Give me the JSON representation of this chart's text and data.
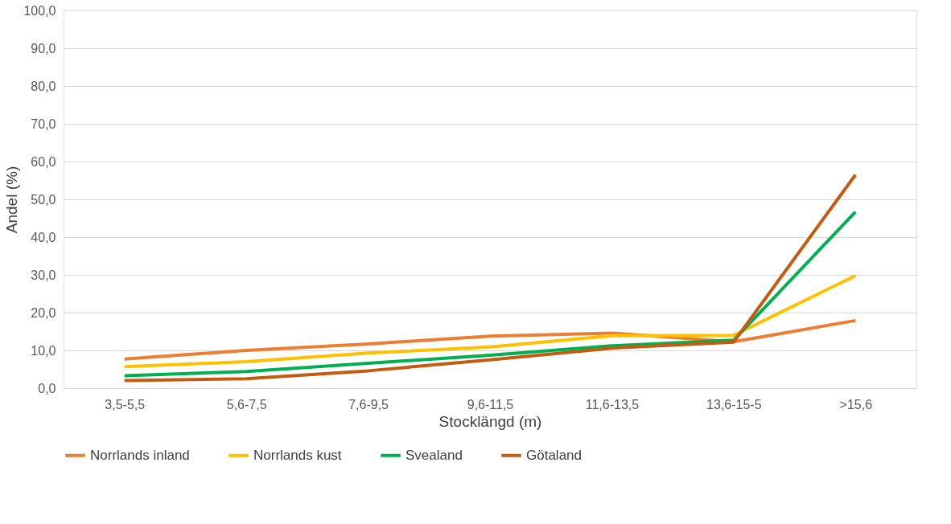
{
  "chart_data": {
    "type": "line",
    "xlabel": "Stocklängd (m)",
    "ylabel": "Andel (%)",
    "categories": [
      "3,5-5,5",
      "5,6-7,5",
      "7,6-9,5",
      "9,6-11,5",
      "11,6-13,5",
      "13,6-15-5",
      ">15,6"
    ],
    "series": [
      {
        "name": "Norrlands inland",
        "color": "#ed7d31",
        "values": [
          7.7,
          10.0,
          11.7,
          13.8,
          14.6,
          12.3,
          17.9
        ]
      },
      {
        "name": "Norrlands kust",
        "color": "#ffc000",
        "values": [
          5.7,
          7.0,
          9.3,
          10.9,
          13.9,
          14.0,
          29.8
        ]
      },
      {
        "name": "Svealand",
        "color": "#00b050",
        "values": [
          3.3,
          4.4,
          6.6,
          8.7,
          11.2,
          12.7,
          46.7
        ]
      },
      {
        "name": "Götaland",
        "color": "#c55a11",
        "values": [
          2.0,
          2.5,
          4.6,
          7.5,
          10.6,
          12.2,
          56.5
        ]
      }
    ],
    "ylim": [
      0,
      100
    ],
    "yticks": [
      {
        "value": 0,
        "label": "0,0"
      },
      {
        "value": 10,
        "label": "10,0"
      },
      {
        "value": 20,
        "label": "20,0"
      },
      {
        "value": 30,
        "label": "30,0"
      },
      {
        "value": 40,
        "label": "40,0"
      },
      {
        "value": 50,
        "label": "50,0"
      },
      {
        "value": 60,
        "label": "60,0"
      },
      {
        "value": 70,
        "label": "70,0"
      },
      {
        "value": 80,
        "label": "80,0"
      },
      {
        "value": 90,
        "label": "90,0"
      },
      {
        "value": 100,
        "label": "100,0"
      }
    ],
    "grid": "y",
    "legend": "bottom",
    "marker": "none",
    "line_style": "solid"
  }
}
